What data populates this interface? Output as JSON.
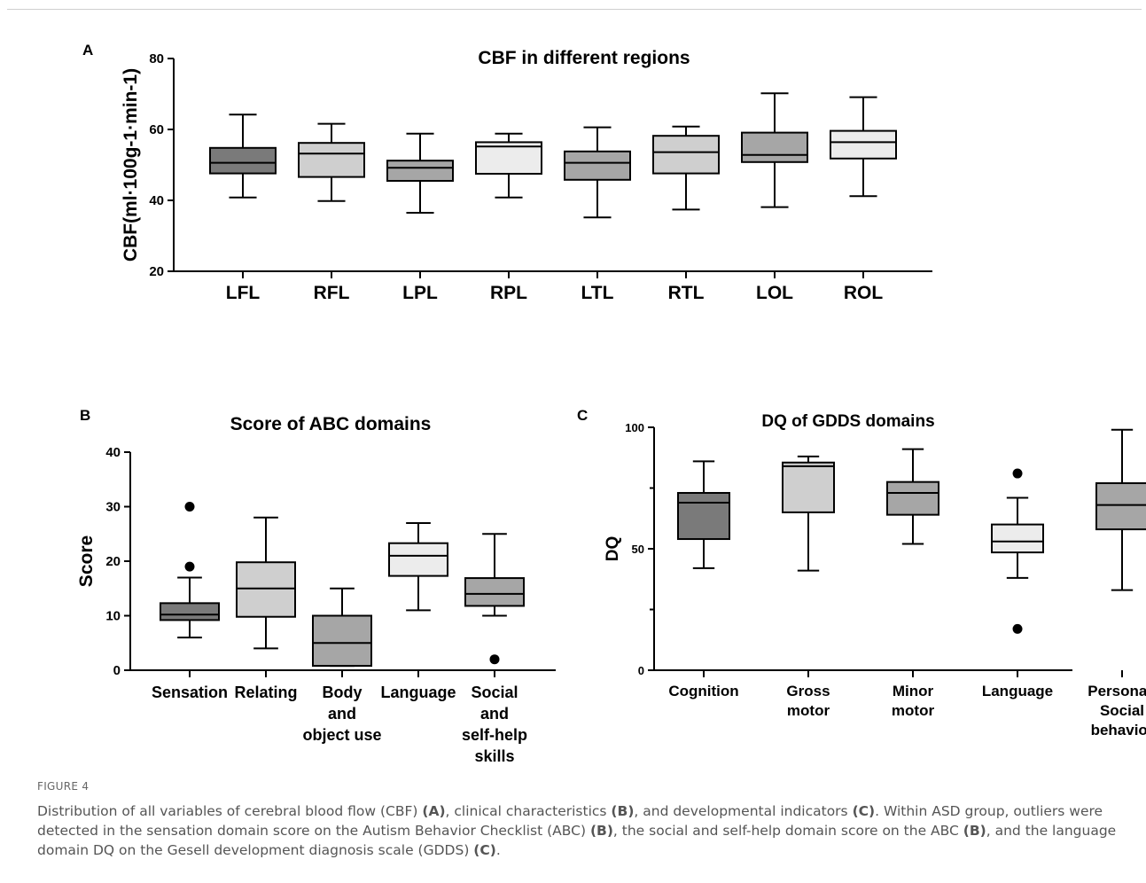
{
  "figure_label": "FIGURE 4",
  "caption": [
    {
      "t": "Distribution of all variables of cerebral blood flow (CBF) "
    },
    {
      "t": "(A)",
      "b": true
    },
    {
      "t": ", clinical characteristics "
    },
    {
      "t": "(B)",
      "b": true
    },
    {
      "t": ", and developmental indicators "
    },
    {
      "t": "(C)",
      "b": true
    },
    {
      "t": ". Within ASD group, outliers were detected in the sensation domain score on the Autism Behavior Checklist (ABC) "
    },
    {
      "t": "(B)",
      "b": true
    },
    {
      "t": ", the social and self-help domain score on the ABC "
    },
    {
      "t": "(B)",
      "b": true
    },
    {
      "t": ", and the language domain DQ on the Gesell development diagnosis scale (GDDS) "
    },
    {
      "t": "(C)",
      "b": true
    },
    {
      "t": "."
    }
  ],
  "colors": {
    "dark": "#7a7a7a",
    "mid": "#a6a6a6",
    "light": "#cfcfcf",
    "lighter": "#ececec",
    "stroke": "#000000"
  },
  "chart_data": [
    {
      "panel": "A",
      "type": "box",
      "title": "CBF in different regions",
      "ylabel": "CBF(ml·100g-1·min-1)",
      "ylim": [
        20,
        80
      ],
      "yticks": [
        20,
        40,
        60,
        80
      ],
      "categories": [
        "LFL",
        "RFL",
        "LPL",
        "RPL",
        "LTL",
        "RTL",
        "LOL",
        "ROL"
      ],
      "boxes": [
        {
          "min": 40.8,
          "q1": 47.6,
          "median": 50.6,
          "q3": 54.8,
          "max": 64.2,
          "outliers": [],
          "fill": "dark"
        },
        {
          "min": 39.8,
          "q1": 46.6,
          "median": 53.2,
          "q3": 56.2,
          "max": 61.6,
          "outliers": [],
          "fill": "light"
        },
        {
          "min": 36.5,
          "q1": 45.5,
          "median": 49.2,
          "q3": 51.2,
          "max": 58.8,
          "outliers": [],
          "fill": "mid"
        },
        {
          "min": 40.8,
          "q1": 47.5,
          "median": 55.2,
          "q3": 56.4,
          "max": 58.8,
          "outliers": [],
          "fill": "lighter"
        },
        {
          "min": 35.2,
          "q1": 45.8,
          "median": 50.6,
          "q3": 53.8,
          "max": 60.6,
          "outliers": [],
          "fill": "mid"
        },
        {
          "min": 37.4,
          "q1": 47.6,
          "median": 53.6,
          "q3": 58.2,
          "max": 60.8,
          "outliers": [],
          "fill": "light"
        },
        {
          "min": 38.1,
          "q1": 50.8,
          "median": 52.8,
          "q3": 59.1,
          "max": 70.2,
          "outliers": [],
          "fill": "mid"
        },
        {
          "min": 41.2,
          "q1": 51.8,
          "median": 56.4,
          "q3": 59.6,
          "max": 69.1,
          "outliers": [],
          "fill": "lighter"
        }
      ]
    },
    {
      "panel": "B",
      "type": "box",
      "title": "Score of ABC domains",
      "ylabel": "Score",
      "ylim": [
        0,
        40
      ],
      "yticks": [
        0,
        10,
        20,
        30,
        40
      ],
      "categories": [
        [
          "Sensation"
        ],
        [
          "Relating"
        ],
        [
          "Body",
          "and",
          "object use"
        ],
        [
          "Language"
        ],
        [
          "Social",
          "and",
          "self-help",
          "skills"
        ]
      ],
      "boxes": [
        {
          "min": 6,
          "q1": 9.2,
          "median": 10.2,
          "q3": 12.3,
          "max": 17,
          "outliers": [
            19,
            30
          ],
          "fill": "dark"
        },
        {
          "min": 4,
          "q1": 9.8,
          "median": 15,
          "q3": 19.8,
          "max": 28,
          "outliers": [],
          "fill": "light"
        },
        {
          "min": 0.8,
          "q1": 0.8,
          "median": 5,
          "q3": 10,
          "max": 15,
          "outliers": [],
          "fill": "mid"
        },
        {
          "min": 11,
          "q1": 17.3,
          "median": 21,
          "q3": 23.3,
          "max": 27,
          "outliers": [],
          "fill": "lighter"
        },
        {
          "min": 10,
          "q1": 11.8,
          "median": 14,
          "q3": 16.9,
          "max": 25,
          "outliers": [
            2
          ],
          "fill": "mid"
        }
      ]
    },
    {
      "panel": "C",
      "type": "box",
      "title": "DQ of GDDS domains",
      "ylabel": "DQ",
      "ylim": [
        0,
        100
      ],
      "yticks": [
        0,
        50,
        100
      ],
      "categories": [
        [
          "Cognition"
        ],
        [
          "Gross",
          "motor"
        ],
        [
          "Minor",
          "motor"
        ],
        [
          "Language"
        ],
        [
          "Personal-",
          "Social",
          "behavior"
        ]
      ],
      "boxes": [
        {
          "min": 42,
          "q1": 54,
          "median": 69,
          "q3": 73,
          "max": 86,
          "outliers": [],
          "fill": "dark"
        },
        {
          "min": 41,
          "q1": 65,
          "median": 84,
          "q3": 85.5,
          "max": 88,
          "outliers": [],
          "fill": "light"
        },
        {
          "min": 52,
          "q1": 64,
          "median": 73,
          "q3": 77.5,
          "max": 91,
          "outliers": [],
          "fill": "mid"
        },
        {
          "min": 38,
          "q1": 48.5,
          "median": 53,
          "q3": 60,
          "max": 71,
          "outliers": [
            17,
            81
          ],
          "fill": "lighter"
        },
        {
          "min": 33,
          "q1": 58,
          "median": 68,
          "q3": 77,
          "max": 99,
          "outliers": [],
          "fill": "mid"
        }
      ]
    }
  ]
}
